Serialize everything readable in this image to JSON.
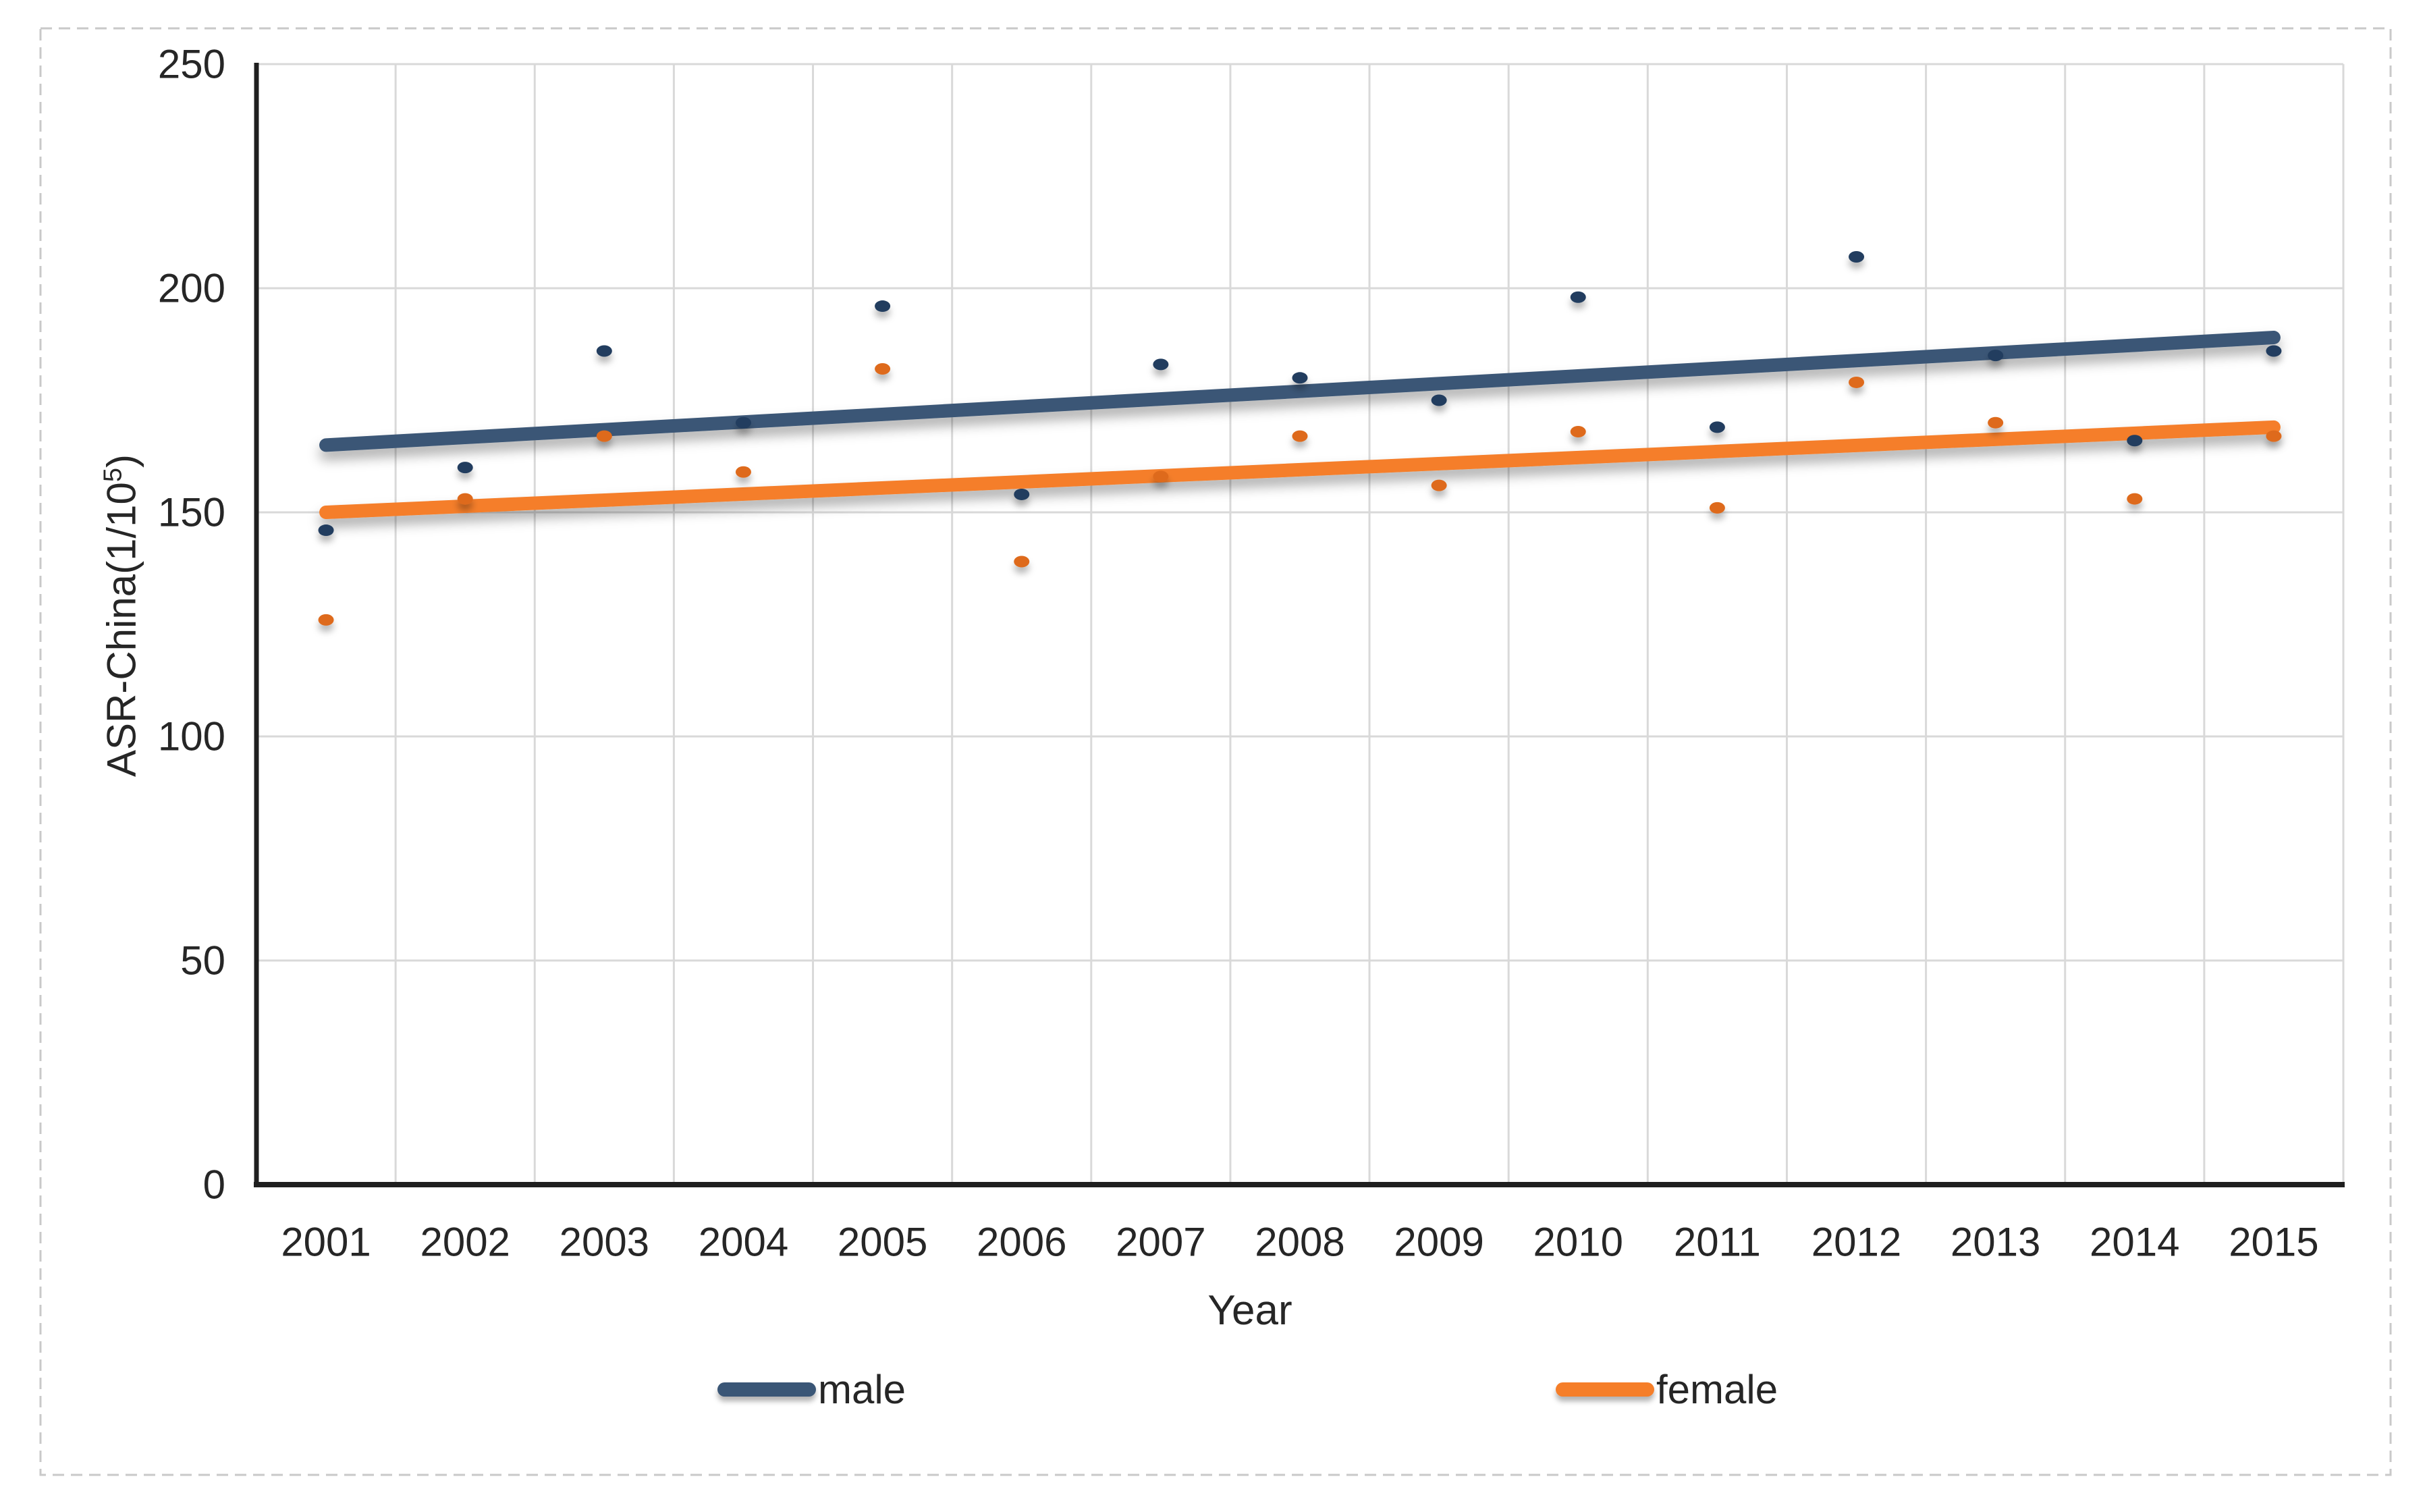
{
  "figure": {
    "background": "#ffffff",
    "border_color": "#c9c9c9",
    "border_style": "dashed"
  },
  "colors": {
    "text": "#262626",
    "gridline": "#d9d9d9",
    "axis": "#1f1f1f"
  },
  "chart_data": {
    "type": "scatter",
    "title": "",
    "xlabel": "Year",
    "ylabel": "ASR-China(1/10⁵)",
    "ylabel_parts": {
      "prefix": "ASR-China(1/10",
      "sup": "5",
      "suffix": ")"
    },
    "x": [
      2001,
      2002,
      2003,
      2004,
      2005,
      2006,
      2007,
      2008,
      2009,
      2010,
      2011,
      2012,
      2013,
      2014,
      2015
    ],
    "x_tick_labels": [
      "2001",
      "2002",
      "2003",
      "2004",
      "2005",
      "2006",
      "2007",
      "2008",
      "2009",
      "2010",
      "2011",
      "2012",
      "2013",
      "2014",
      "2015"
    ],
    "ylim": [
      0,
      250
    ],
    "y_ticks": [
      0,
      50,
      100,
      150,
      200,
      250
    ],
    "grid": true,
    "legend_position": "bottom",
    "series": [
      {
        "name": "male",
        "line_color": "#3a5676",
        "marker_color": "#203c5e",
        "values": [
          146,
          160,
          186,
          170,
          196,
          154,
          183,
          180,
          175,
          198,
          169,
          207,
          185,
          166,
          186
        ],
        "trendline": {
          "type": "linear",
          "start_x": 2001,
          "start_value": 165,
          "end_x": 2015,
          "end_value": 189
        }
      },
      {
        "name": "female",
        "line_color": "#f57e29",
        "marker_color": "#de6b1c",
        "values": [
          126,
          153,
          167,
          159,
          182,
          139,
          158,
          167,
          156,
          168,
          151,
          179,
          170,
          153,
          167
        ],
        "trendline": {
          "type": "linear",
          "start_x": 2001,
          "start_value": 150,
          "end_x": 2015,
          "end_value": 169
        }
      }
    ]
  }
}
